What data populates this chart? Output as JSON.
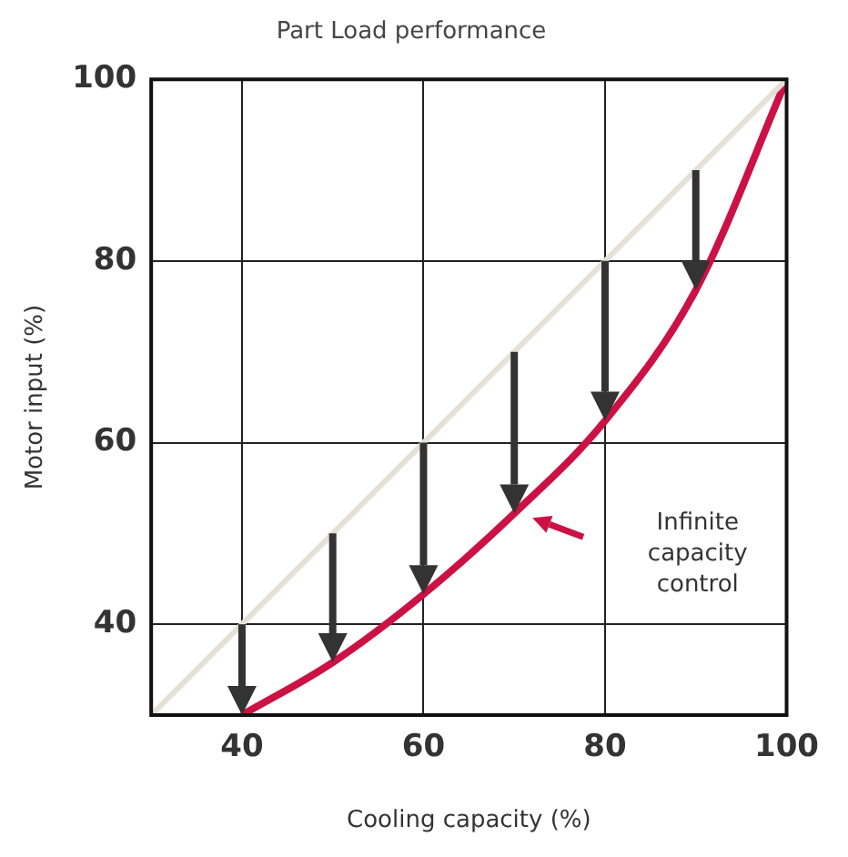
{
  "chart_data": {
    "type": "line",
    "title": "Part Load performance",
    "xlabel": "Cooling capacity (%)",
    "ylabel": "Motor input (%)",
    "xlim": [
      30,
      100
    ],
    "ylim": [
      30,
      100
    ],
    "xticks": [
      40,
      60,
      80,
      100
    ],
    "yticks": [
      40,
      60,
      80,
      100
    ],
    "grid": true,
    "legend": false,
    "marker": "none",
    "line_style": "solid",
    "series": [
      {
        "color": "#e6e1d6",
        "x": [
          30,
          100
        ],
        "values": [
          30,
          100
        ]
      },
      {
        "color": "#cc1144",
        "x": [
          40,
          50,
          60,
          70,
          80,
          90,
          100
        ],
        "values": [
          30,
          35.8,
          43.3,
          52.2,
          62.4,
          76.8,
          100
        ]
      }
    ],
    "annotations": [
      "Infinite capacity control"
    ]
  }
}
